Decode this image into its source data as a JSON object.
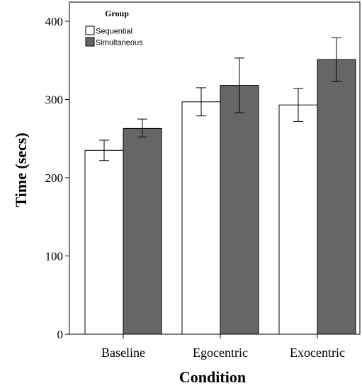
{
  "chart_data": {
    "type": "bar",
    "title": "",
    "xlabel": "Condition",
    "ylabel": "Time (secs)",
    "ylim": [
      0,
      400
    ],
    "yticks": [
      0,
      100,
      200,
      300,
      400
    ],
    "categories": [
      "Baseline",
      "Egocentric",
      "Exocentric"
    ],
    "legend": {
      "title": "Group",
      "position": "top-left"
    },
    "grid": false,
    "error_bars": true,
    "series": [
      {
        "name": "Sequential",
        "color": "#ffffff",
        "values": [
          235,
          297,
          293
        ],
        "error_low": [
          222,
          279,
          272
        ],
        "error_high": [
          248,
          315,
          314
        ]
      },
      {
        "name": "Simultaneous",
        "color": "#666666",
        "values": [
          263,
          318,
          351
        ],
        "error_low": [
          252,
          283,
          323
        ],
        "error_high": [
          275,
          353,
          379
        ]
      }
    ]
  }
}
